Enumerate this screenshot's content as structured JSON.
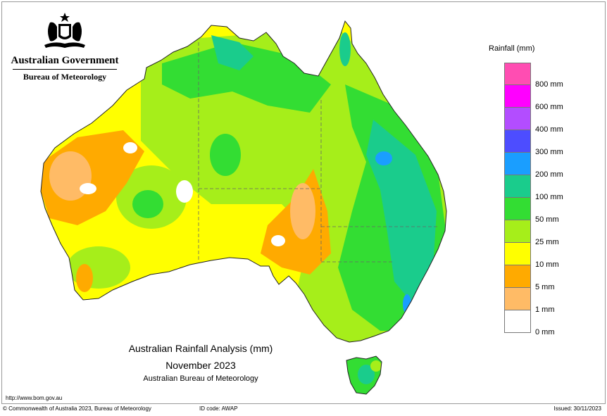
{
  "logo": {
    "government": "Australian Government",
    "bureau": "Bureau of Meteorology"
  },
  "legend": {
    "title": "Rainfall (mm)",
    "colors": [
      "#ff4db2",
      "#ff00ff",
      "#b34dff",
      "#4d4dff",
      "#1a9eff",
      "#1acc8c",
      "#33dd33",
      "#a6ee1a",
      "#ffff00",
      "#ffaa00",
      "#ffbb66",
      "#ffffff"
    ],
    "labels": [
      "800 mm",
      "600 mm",
      "400 mm",
      "300 mm",
      "200 mm",
      "100 mm",
      "50 mm",
      "25 mm",
      "10 mm",
      "5 mm",
      "1 mm",
      "0 mm"
    ]
  },
  "caption": {
    "title": "Australian Rainfall Analysis (mm)",
    "period": "November 2023",
    "source": "Australian Bureau of Meteorology"
  },
  "url": "http://www.bom.gov.au",
  "footer": {
    "copyright": "© Commonwealth of Australia 2023, Bureau of Meteorology",
    "id_code": "ID code: AWAP",
    "issued": "Issued: 30/11/2023"
  },
  "map": {
    "colors": {
      "land_base": "#ffff00",
      "dry_orange": "#ffaa00",
      "dry_light": "#ffbb66",
      "nil": "#ffffff",
      "green_light": "#a6ee1a",
      "green": "#33dd33",
      "teal": "#1acc8c",
      "blue": "#1a9eff",
      "border": "#666666",
      "coast": "#222222"
    }
  }
}
